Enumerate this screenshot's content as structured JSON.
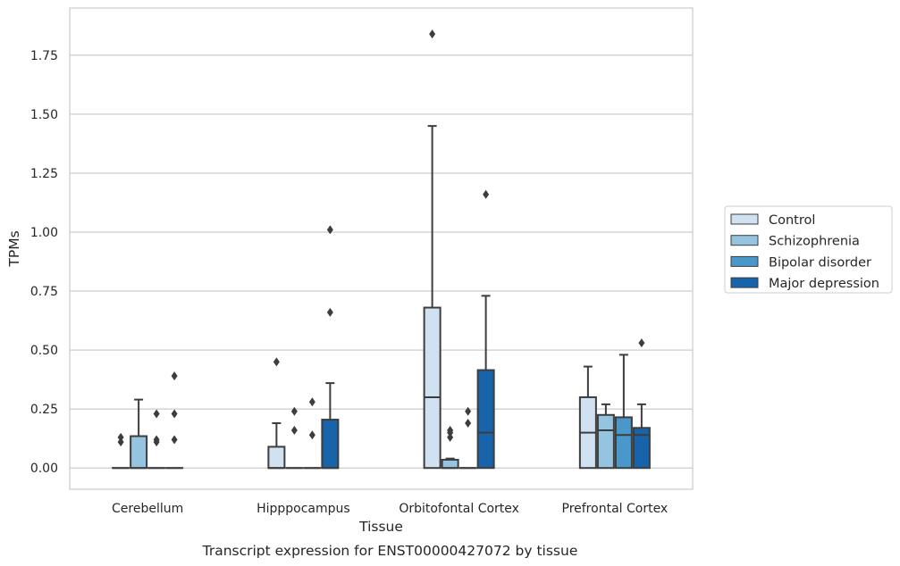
{
  "chart_data": {
    "type": "box",
    "caption": "Transcript expression for ENST00000427072 by tissue",
    "xlabel": "Tissue",
    "ylabel": "TPMs",
    "ylim": [
      -0.09,
      1.95
    ],
    "yticks": [
      0.0,
      0.25,
      0.5,
      0.75,
      1.0,
      1.25,
      1.5,
      1.75
    ],
    "ytick_labels": [
      "0.00",
      "0.25",
      "0.50",
      "0.75",
      "1.00",
      "1.25",
      "1.50",
      "1.75"
    ],
    "grid": "horizontal",
    "legend_position": "right",
    "categories": [
      "Cerebellum",
      "Hipppocampus",
      "Orbitofontal Cortex",
      "Prefrontal Cortex"
    ],
    "series": [
      {
        "name": "Control",
        "color": "#d0e1f2",
        "boxes": [
          {
            "q1": 0.0,
            "median": 0.0,
            "q3": 0.0,
            "whisker_low": 0.0,
            "whisker_high": 0.0,
            "outliers": [
              0.11,
              0.13
            ]
          },
          {
            "q1": 0.0,
            "median": 0.0,
            "q3": 0.09,
            "whisker_low": 0.0,
            "whisker_high": 0.19,
            "outliers": [
              0.45
            ]
          },
          {
            "q1": 0.0,
            "median": 0.3,
            "q3": 0.68,
            "whisker_low": 0.0,
            "whisker_high": 1.45,
            "outliers": [
              1.84
            ]
          },
          {
            "q1": 0.0,
            "median": 0.15,
            "q3": 0.3,
            "whisker_low": 0.0,
            "whisker_high": 0.43,
            "outliers": []
          }
        ]
      },
      {
        "name": "Schizophrenia",
        "color": "#94c4df",
        "boxes": [
          {
            "q1": 0.0,
            "median": 0.0,
            "q3": 0.135,
            "whisker_low": 0.0,
            "whisker_high": 0.29,
            "outliers": []
          },
          {
            "q1": 0.0,
            "median": 0.0,
            "q3": 0.0,
            "whisker_low": 0.0,
            "whisker_high": 0.0,
            "outliers": [
              0.16,
              0.24
            ]
          },
          {
            "q1": 0.0,
            "median": 0.0,
            "q3": 0.035,
            "whisker_low": 0.0,
            "whisker_high": 0.04,
            "outliers": [
              0.13,
              0.15,
              0.16
            ]
          },
          {
            "q1": 0.0,
            "median": 0.16,
            "q3": 0.225,
            "whisker_low": 0.0,
            "whisker_high": 0.27,
            "outliers": []
          }
        ]
      },
      {
        "name": "Bipolar disorder",
        "color": "#4a98c9",
        "boxes": [
          {
            "q1": 0.0,
            "median": 0.0,
            "q3": 0.0,
            "whisker_low": 0.0,
            "whisker_high": 0.0,
            "outliers": [
              0.11,
              0.12,
              0.23
            ]
          },
          {
            "q1": 0.0,
            "median": 0.0,
            "q3": 0.0,
            "whisker_low": 0.0,
            "whisker_high": 0.0,
            "outliers": [
              0.14,
              0.28
            ]
          },
          {
            "q1": 0.0,
            "median": 0.0,
            "q3": 0.0,
            "whisker_low": 0.0,
            "whisker_high": 0.0,
            "outliers": [
              0.19,
              0.24
            ]
          },
          {
            "q1": 0.0,
            "median": 0.14,
            "q3": 0.215,
            "whisker_low": 0.0,
            "whisker_high": 0.48,
            "outliers": []
          }
        ]
      },
      {
        "name": "Major depression",
        "color": "#1764ab",
        "boxes": [
          {
            "q1": 0.0,
            "median": 0.0,
            "q3": 0.0,
            "whisker_low": 0.0,
            "whisker_high": 0.0,
            "outliers": [
              0.12,
              0.23,
              0.39
            ]
          },
          {
            "q1": 0.0,
            "median": 0.0,
            "q3": 0.205,
            "whisker_low": 0.0,
            "whisker_high": 0.36,
            "outliers": [
              0.66,
              1.01
            ]
          },
          {
            "q1": 0.0,
            "median": 0.15,
            "q3": 0.415,
            "whisker_low": 0.0,
            "whisker_high": 0.73,
            "outliers": [
              1.16
            ]
          },
          {
            "q1": 0.0,
            "median": 0.14,
            "q3": 0.17,
            "whisker_low": 0.0,
            "whisker_high": 0.27,
            "outliers": [
              0.53
            ]
          }
        ]
      }
    ]
  }
}
